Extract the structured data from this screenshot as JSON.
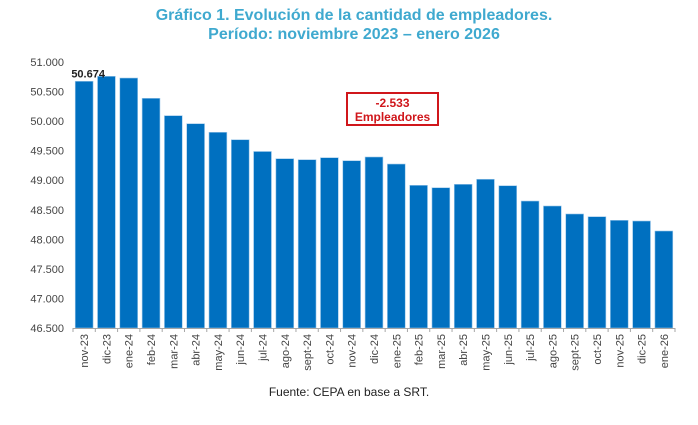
{
  "chart_data": {
    "type": "bar",
    "title": "Gráfico 1. Evolución de la cantidad de empleadores.",
    "subtitle": "Período: noviembre 2023 – enero 2026",
    "xlabel": "",
    "ylabel": "",
    "ylim": [
      46500,
      51000
    ],
    "yticks": [
      46500,
      47000,
      47500,
      48000,
      48500,
      49000,
      49500,
      50000,
      50500,
      51000
    ],
    "ytick_labels": [
      "46.500",
      "47.000",
      "47.500",
      "48.000",
      "48.500",
      "49.000",
      "49.500",
      "50.000",
      "50.500",
      "51.000"
    ],
    "grid": false,
    "categories": [
      "nov-23",
      "dic-23",
      "ene-24",
      "feb-24",
      "mar-24",
      "abr-24",
      "may-24",
      "jun-24",
      "jul-24",
      "ago-24",
      "sept-24",
      "oct-24",
      "nov-24",
      "dic-24",
      "ene-25",
      "feb-25",
      "mar-25",
      "abr-25",
      "may-25",
      "jun-25",
      "jul-25",
      "ago-25",
      "sept-25",
      "oct-25",
      "nov-25",
      "dic-25",
      "ene-26"
    ],
    "values": [
      50674,
      50758,
      50729,
      50386,
      50092,
      49956,
      49811,
      49685,
      49486,
      49364,
      49347,
      49381,
      49330,
      49393,
      49274,
      48914,
      48873,
      48931,
      49016,
      48907,
      48648,
      48564,
      48429,
      48383,
      48322,
      48310,
      48141
    ],
    "bar_color": "#0070c0",
    "data_labels": [
      {
        "index": 0,
        "text": "50.674"
      }
    ],
    "annotation": {
      "line1": "-2.533",
      "line2": "Empleadores",
      "color": "#d0161b"
    },
    "source": "Fuente: CEPA en base a SRT."
  }
}
